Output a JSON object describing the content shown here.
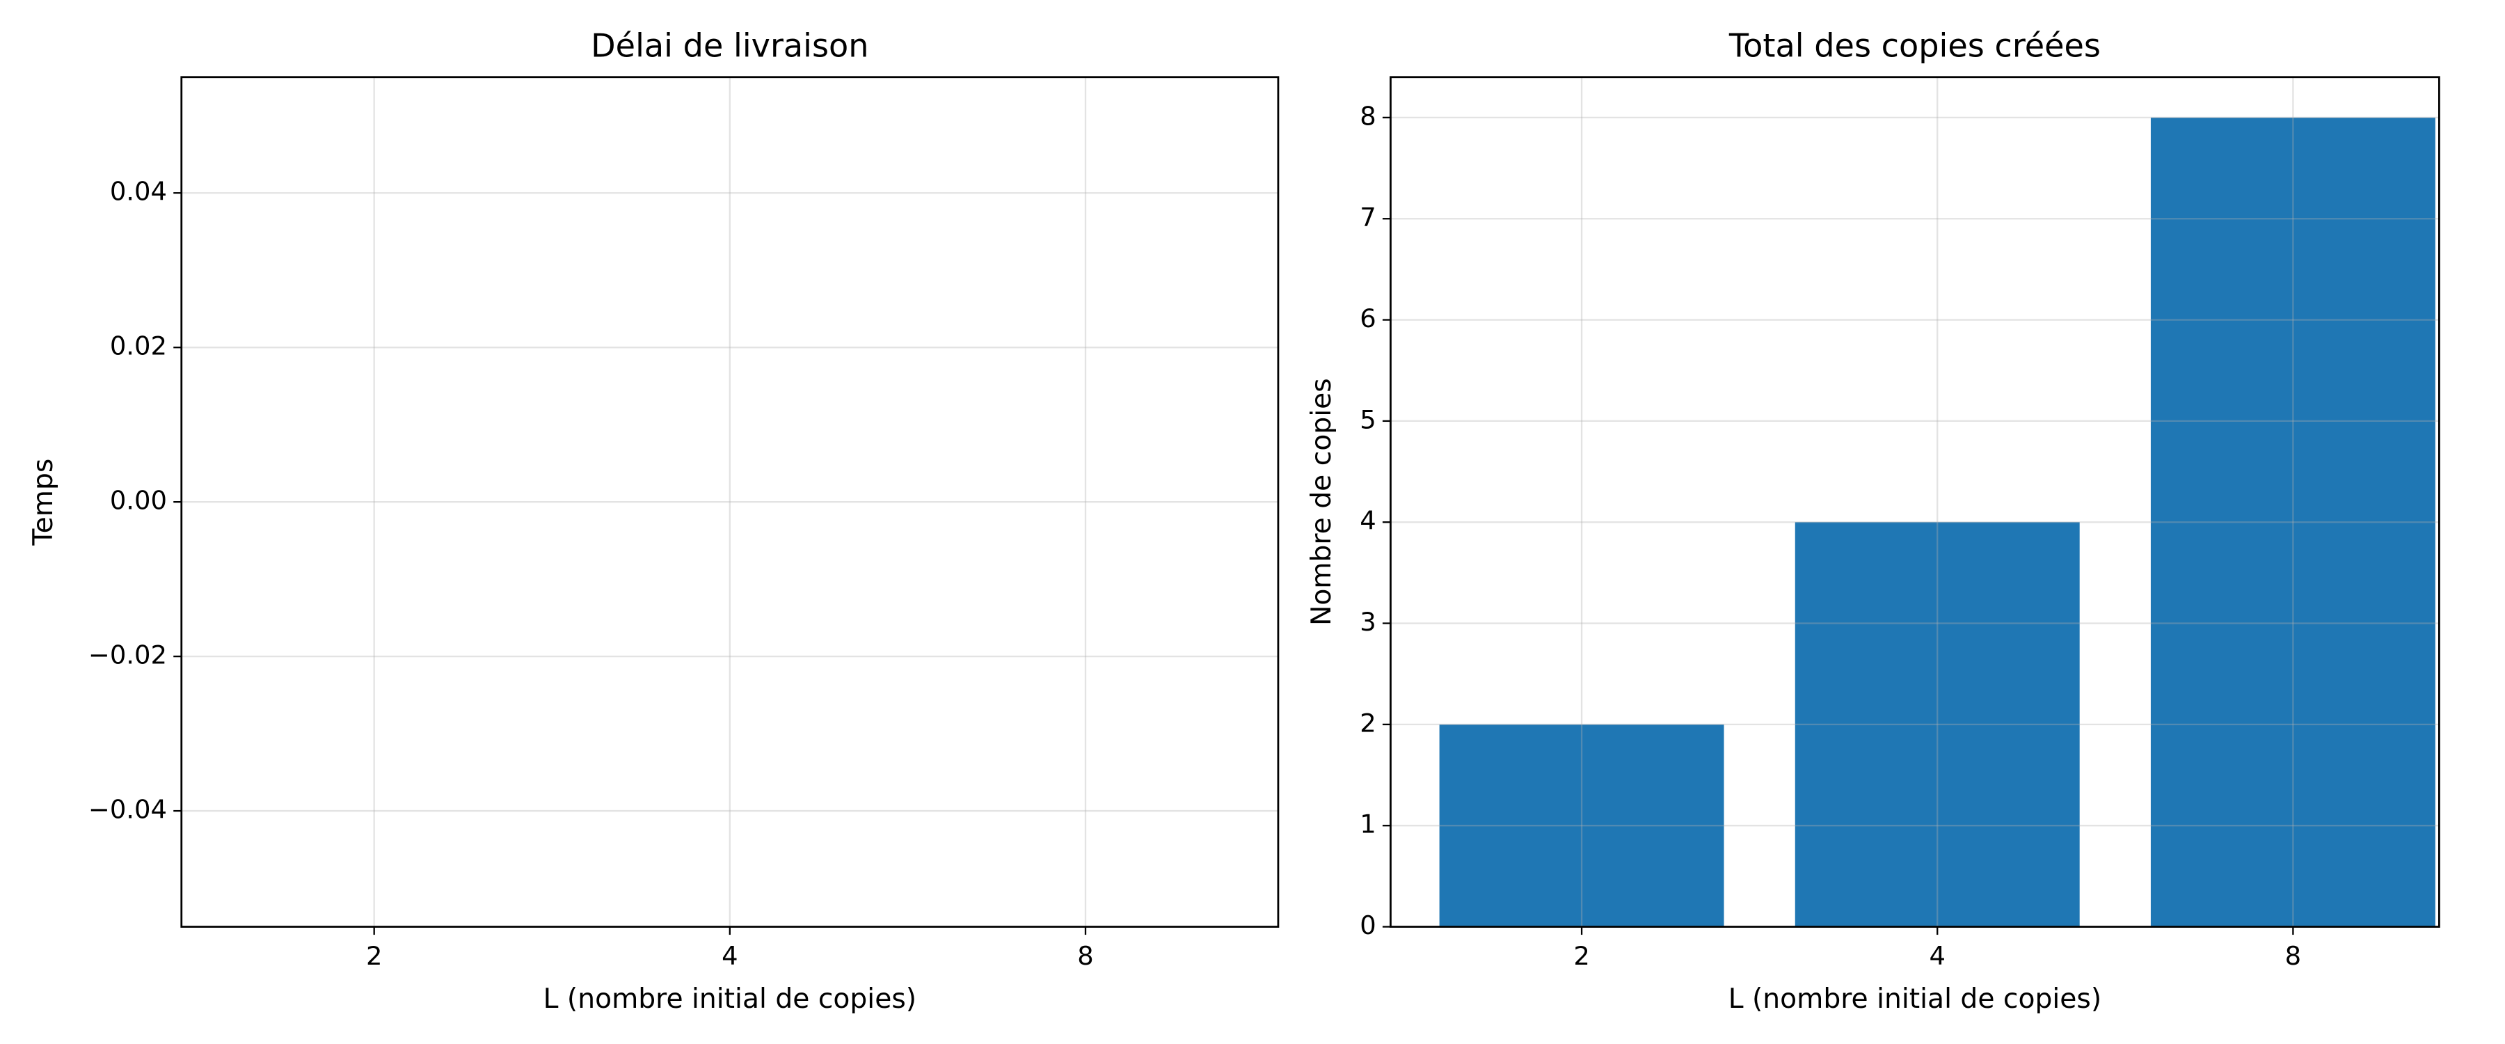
{
  "chart_data": [
    {
      "type": "bar",
      "title": "Délai de livraison",
      "xlabel": "L (nombre initial de copies)",
      "ylabel": "Temps",
      "categories": [
        "2",
        "4",
        "8"
      ],
      "values": [
        0,
        0,
        0
      ],
      "color": "#1f77b4",
      "ylim": [
        -0.055,
        0.055
      ],
      "yticks": [
        {
          "value": -0.04,
          "label": "−0.04"
        },
        {
          "value": -0.02,
          "label": "−0.02"
        },
        {
          "value": 0,
          "label": "0.00"
        },
        0.02,
        0.04
      ],
      "grid": true
    },
    {
      "type": "bar",
      "title": "Total des copies créées",
      "xlabel": "L (nombre initial de copies)",
      "ylabel": "Nombre de copies",
      "categories": [
        "2",
        "4",
        "8"
      ],
      "values": [
        2,
        4,
        8
      ],
      "color": "#1f77b4",
      "ylim": [
        0,
        8.4
      ],
      "yticks": [
        0,
        1,
        2,
        3,
        4,
        5,
        6,
        7,
        8
      ],
      "grid": true
    }
  ]
}
